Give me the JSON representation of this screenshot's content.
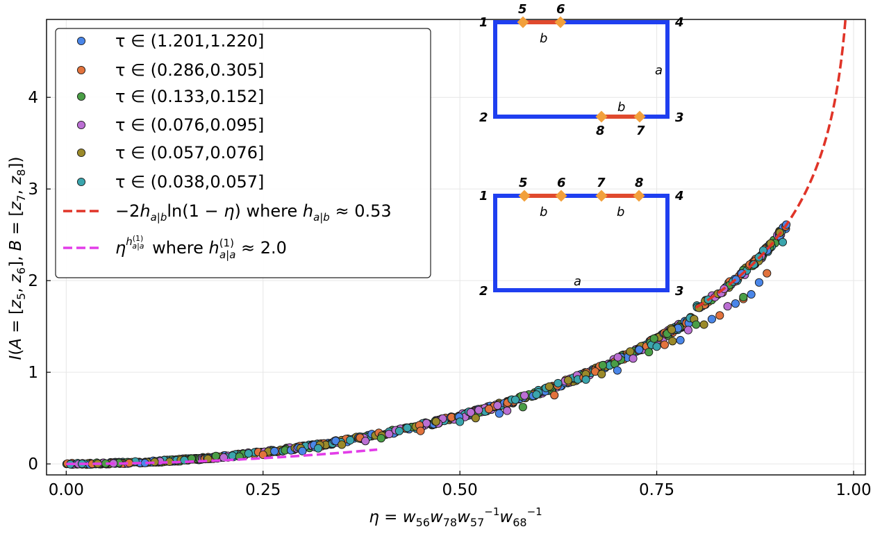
{
  "chart_data": {
    "type": "scatter",
    "xlabel": "η = w₅₆w₇₈w₅₇⁻¹w₆₈⁻¹",
    "ylabel": "I(A = [z₅, z₆], B = [z₇, z₈])",
    "xlim": [
      -0.025,
      1.015
    ],
    "ylim": [
      -0.12,
      4.85
    ],
    "xticks": [
      "0.00",
      "0.25",
      "0.50",
      "0.75",
      "1.00"
    ],
    "xtick_values": [
      0,
      0.25,
      0.5,
      0.75,
      1.0
    ],
    "yticks": [
      "0",
      "1",
      "2",
      "3",
      "4"
    ],
    "ytick_values": [
      0,
      1,
      2,
      3,
      4
    ],
    "grid": true,
    "legend_position": "top-left",
    "series": [
      {
        "name": "τ ∈ (1.201,1.220]",
        "color": "#4a86e8",
        "type": "scatter",
        "x": [
          0.1,
          0.3,
          0.55,
          0.7,
          0.78,
          0.82,
          0.85,
          0.87,
          0.88
        ],
        "y": [
          0.01,
          0.14,
          0.55,
          1.02,
          1.35,
          1.58,
          1.75,
          1.85,
          1.98
        ]
      },
      {
        "name": "τ ∈ (0.286,0.305]",
        "color": "#e2733d",
        "type": "scatter",
        "x": [
          0.08,
          0.25,
          0.45,
          0.62,
          0.76,
          0.83,
          0.86,
          0.89
        ],
        "y": [
          0.01,
          0.1,
          0.36,
          0.75,
          1.3,
          1.62,
          1.8,
          2.08
        ]
      },
      {
        "name": "τ ∈ (0.133,0.152]",
        "color": "#4a9e46",
        "type": "scatter",
        "x": [
          0.05,
          0.22,
          0.4,
          0.58,
          0.74,
          0.8,
          0.86
        ],
        "y": [
          0.005,
          0.08,
          0.28,
          0.62,
          1.22,
          1.52,
          1.82
        ]
      },
      {
        "name": "τ ∈ (0.076,0.095]",
        "color": "#bb6fd3",
        "type": "scatter",
        "x": [
          0.06,
          0.2,
          0.38,
          0.56,
          0.72,
          0.79,
          0.84
        ],
        "y": [
          0.006,
          0.07,
          0.25,
          0.58,
          1.15,
          1.46,
          1.72
        ]
      },
      {
        "name": "τ ∈ (0.057,0.076]",
        "color": "#9b8a2a",
        "type": "scatter",
        "x": [
          0.04,
          0.18,
          0.35,
          0.52,
          0.68,
          0.77,
          0.81
        ],
        "y": [
          0.003,
          0.055,
          0.21,
          0.5,
          0.98,
          1.34,
          1.52
        ]
      },
      {
        "name": "τ ∈ (0.038,0.057]",
        "color": "#3aa5ad",
        "type": "scatter",
        "x": [
          0.02,
          0.15,
          0.32,
          0.5,
          0.66,
          0.75,
          0.91
        ],
        "y": [
          0.001,
          0.04,
          0.17,
          0.46,
          0.92,
          1.28,
          2.42
        ]
      },
      {
        "name": "−2h_{a|b} ln(1 − η) where h_{a|b} ≈ 0.53",
        "color": "#e03428",
        "type": "line",
        "x": [
          0.8,
          0.85,
          0.9,
          0.93,
          0.95,
          0.97,
          0.98,
          0.99
        ],
        "y": [
          1.71,
          2.01,
          2.44,
          2.82,
          3.18,
          3.72,
          4.15,
          4.88
        ]
      },
      {
        "name": "η^{h^{(1)}_{a|a}} where h^{(1)}_{a|a} ≈ 2.0",
        "color": "#e23de8",
        "type": "line",
        "x": [
          0.0,
          0.1,
          0.2,
          0.3,
          0.4
        ],
        "y": [
          0.0,
          0.01,
          0.04,
          0.09,
          0.16
        ]
      }
    ]
  },
  "legend": {
    "entries": [
      {
        "label": "τ ∈ (1.201,1.220]",
        "color": "#4a86e8",
        "marker": "circle"
      },
      {
        "label": "τ ∈ (0.286,0.305]",
        "color": "#e2733d",
        "marker": "circle"
      },
      {
        "label": "τ ∈ (0.133,0.152]",
        "color": "#4a9e46",
        "marker": "circle"
      },
      {
        "label": "τ ∈ (0.076,0.095]",
        "color": "#bb6fd3",
        "marker": "circle"
      },
      {
        "label": "τ ∈ (0.057,0.076]",
        "color": "#9b8a2a",
        "marker": "circle"
      },
      {
        "label": "τ ∈ (0.038,0.057]",
        "color": "#3aa5ad",
        "marker": "circle"
      },
      {
        "label": "−2h",
        "sub": "a|b",
        "mid": "ln(1 − η) where h",
        "sub2": "a|b",
        "tail": " ≈ 0.53",
        "color": "#e03428",
        "marker": "dash"
      },
      {
        "label": "η",
        "sup": "h(1)a|a",
        "mid": " where h",
        "sub2": "a|a",
        "sup2": "(1)",
        "tail": " ≈ 2.0",
        "color": "#e23de8",
        "marker": "dash"
      }
    ]
  },
  "inset_top": {
    "corner_labels": [
      "1",
      "2",
      "3",
      "4"
    ],
    "point_labels": [
      "5",
      "6",
      "8",
      "7"
    ],
    "segment_labels": [
      "b",
      "b"
    ],
    "side_label": "a",
    "colors": {
      "boundary": "#1f3ff0",
      "segment": "#e04a2e",
      "point": "#f2a03c"
    }
  },
  "inset_bottom": {
    "corner_labels": [
      "1",
      "2",
      "3",
      "4"
    ],
    "point_labels": [
      "5",
      "6",
      "7",
      "8"
    ],
    "segment_labels": [
      "b",
      "b"
    ],
    "side_label": "a",
    "colors": {
      "boundary": "#1f3ff0",
      "segment": "#e04a2e",
      "point": "#f2a03c"
    }
  }
}
